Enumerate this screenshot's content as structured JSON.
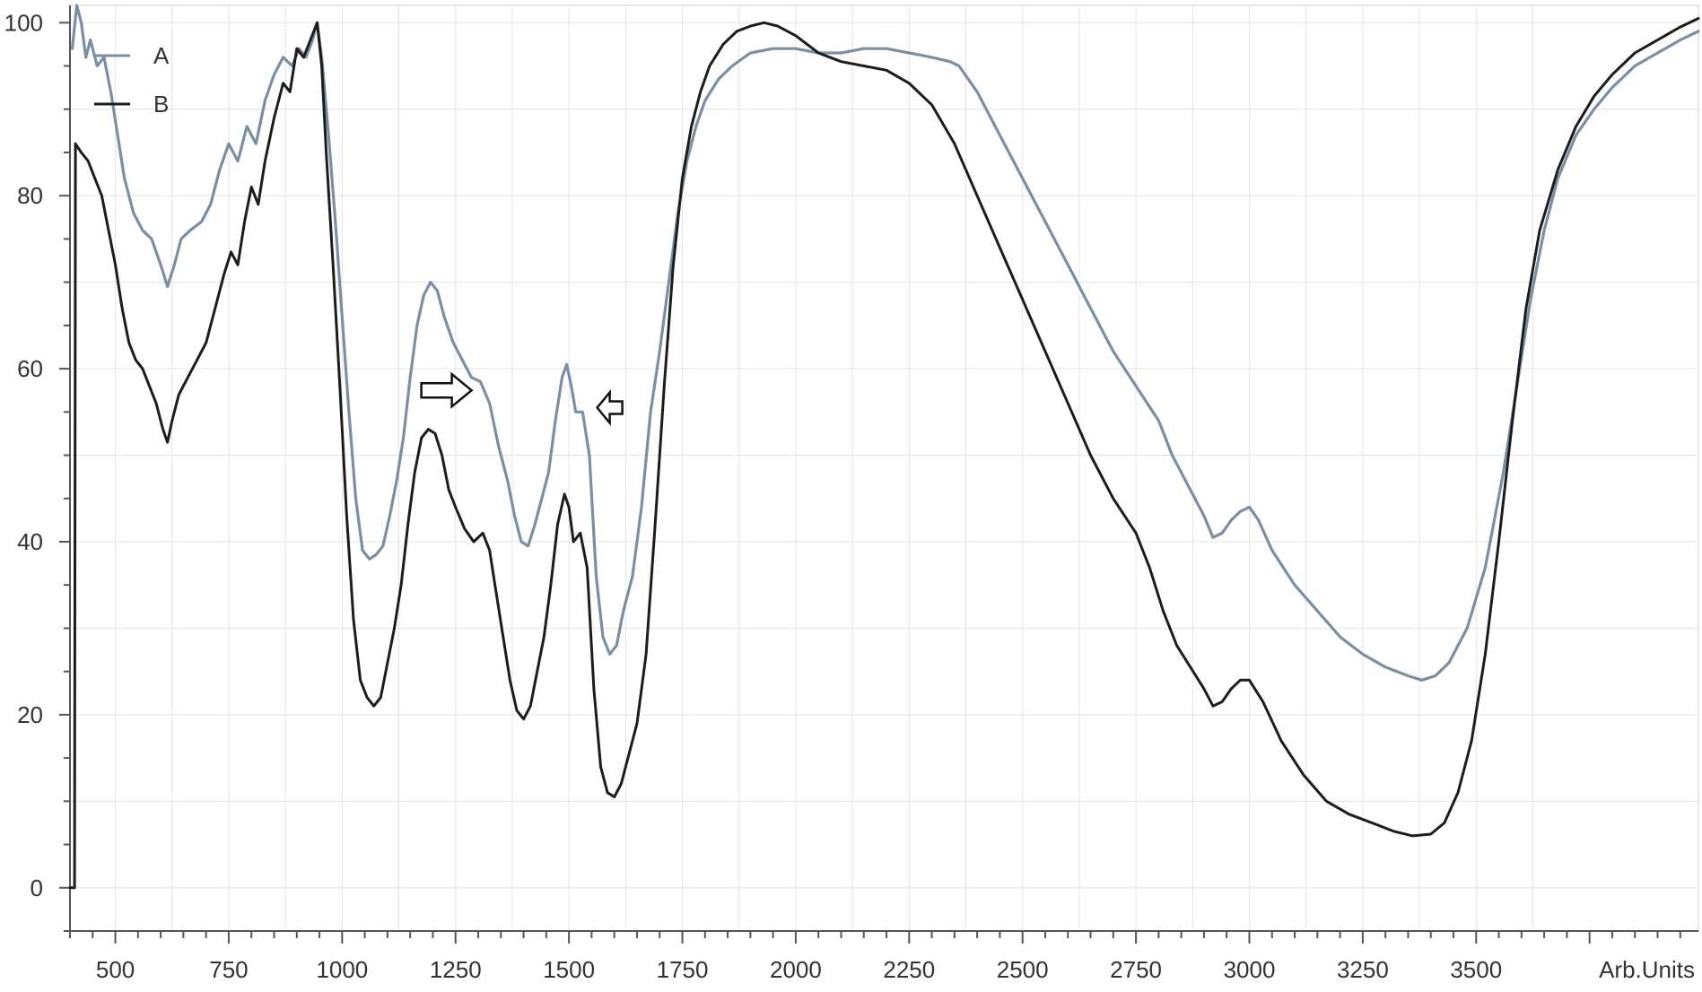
{
  "chart_data": {
    "type": "line",
    "title": "",
    "xlabel": "",
    "ylabel": "",
    "x_unit_label": "Arb.Units",
    "xlim": [
      400,
      3990
    ],
    "ylim": [
      -5,
      102
    ],
    "x_ticks": [
      500,
      750,
      1000,
      1250,
      1500,
      1750,
      2000,
      2250,
      2500,
      2750,
      3000,
      3250,
      3500
    ],
    "x_tick_labels": [
      "500",
      "750",
      "1000",
      "1250",
      "1500",
      "1750",
      "2000",
      "2250",
      "2500",
      "2750",
      "3000",
      "3250",
      "3500"
    ],
    "y_ticks": [
      0,
      20,
      40,
      60,
      80,
      100
    ],
    "y_tick_labels": [
      "0",
      "20",
      "40",
      "60",
      "80",
      "100"
    ],
    "grid": true,
    "legend": {
      "placement": "top-left"
    },
    "annotations": [
      {
        "type": "arrow",
        "direction": "right",
        "x": 1230,
        "y": 57.5
      },
      {
        "type": "arrow",
        "direction": "left",
        "x": 1590,
        "y": 55.5
      }
    ],
    "series": [
      {
        "name": "A",
        "color": "#7b8fa3",
        "points": [
          [
            405,
            97
          ],
          [
            415,
            102
          ],
          [
            425,
            100
          ],
          [
            435,
            96
          ],
          [
            445,
            98
          ],
          [
            460,
            95
          ],
          [
            475,
            96
          ],
          [
            490,
            92
          ],
          [
            505,
            87
          ],
          [
            520,
            82
          ],
          [
            540,
            78
          ],
          [
            560,
            76
          ],
          [
            580,
            75
          ],
          [
            600,
            72
          ],
          [
            615,
            69.5
          ],
          [
            630,
            72
          ],
          [
            645,
            75
          ],
          [
            665,
            76
          ],
          [
            690,
            77
          ],
          [
            710,
            79
          ],
          [
            730,
            83
          ],
          [
            750,
            86
          ],
          [
            770,
            84
          ],
          [
            790,
            88
          ],
          [
            810,
            86
          ],
          [
            830,
            91
          ],
          [
            850,
            94
          ],
          [
            870,
            96
          ],
          [
            890,
            95
          ],
          [
            905,
            97
          ],
          [
            920,
            96
          ],
          [
            935,
            98
          ],
          [
            945,
            100
          ],
          [
            955,
            96
          ],
          [
            970,
            87
          ],
          [
            985,
            77
          ],
          [
            1000,
            66
          ],
          [
            1015,
            55
          ],
          [
            1030,
            45
          ],
          [
            1045,
            39
          ],
          [
            1060,
            38
          ],
          [
            1075,
            38.5
          ],
          [
            1090,
            39.5
          ],
          [
            1105,
            43
          ],
          [
            1120,
            47
          ],
          [
            1135,
            52
          ],
          [
            1150,
            59
          ],
          [
            1165,
            65
          ],
          [
            1180,
            68.5
          ],
          [
            1195,
            70
          ],
          [
            1210,
            69
          ],
          [
            1225,
            66
          ],
          [
            1245,
            63
          ],
          [
            1265,
            61
          ],
          [
            1285,
            59
          ],
          [
            1305,
            58.5
          ],
          [
            1325,
            56
          ],
          [
            1345,
            51
          ],
          [
            1365,
            47
          ],
          [
            1380,
            43
          ],
          [
            1395,
            40
          ],
          [
            1410,
            39.5
          ],
          [
            1425,
            42
          ],
          [
            1440,
            45
          ],
          [
            1455,
            48
          ],
          [
            1470,
            54
          ],
          [
            1485,
            59
          ],
          [
            1495,
            60.5
          ],
          [
            1505,
            58
          ],
          [
            1515,
            55
          ],
          [
            1530,
            55
          ],
          [
            1545,
            50
          ],
          [
            1560,
            36
          ],
          [
            1575,
            29
          ],
          [
            1590,
            27
          ],
          [
            1605,
            28
          ],
          [
            1620,
            32
          ],
          [
            1640,
            36
          ],
          [
            1660,
            44
          ],
          [
            1680,
            55
          ],
          [
            1700,
            62
          ],
          [
            1720,
            70
          ],
          [
            1740,
            78
          ],
          [
            1760,
            84
          ],
          [
            1780,
            88
          ],
          [
            1800,
            91
          ],
          [
            1830,
            93.5
          ],
          [
            1860,
            95
          ],
          [
            1900,
            96.5
          ],
          [
            1950,
            97
          ],
          [
            2000,
            97
          ],
          [
            2050,
            96.5
          ],
          [
            2100,
            96.5
          ],
          [
            2150,
            97
          ],
          [
            2200,
            97
          ],
          [
            2250,
            96.5
          ],
          [
            2300,
            96
          ],
          [
            2340,
            95.5
          ],
          [
            2360,
            95
          ],
          [
            2400,
            92
          ],
          [
            2450,
            87
          ],
          [
            2500,
            82
          ],
          [
            2550,
            77
          ],
          [
            2600,
            72
          ],
          [
            2650,
            67
          ],
          [
            2700,
            62
          ],
          [
            2750,
            58
          ],
          [
            2800,
            54
          ],
          [
            2830,
            50
          ],
          [
            2860,
            47
          ],
          [
            2880,
            45
          ],
          [
            2900,
            43
          ],
          [
            2920,
            40.5
          ],
          [
            2940,
            41
          ],
          [
            2960,
            42.5
          ],
          [
            2980,
            43.5
          ],
          [
            3000,
            44
          ],
          [
            3020,
            42.5
          ],
          [
            3050,
            39
          ],
          [
            3100,
            35
          ],
          [
            3150,
            32
          ],
          [
            3200,
            29
          ],
          [
            3250,
            27
          ],
          [
            3300,
            25.5
          ],
          [
            3350,
            24.5
          ],
          [
            3380,
            24
          ],
          [
            3410,
            24.5
          ],
          [
            3440,
            26
          ],
          [
            3480,
            30
          ],
          [
            3520,
            37
          ],
          [
            3560,
            48
          ],
          [
            3590,
            58
          ],
          [
            3620,
            68
          ],
          [
            3650,
            76
          ],
          [
            3680,
            82
          ],
          [
            3720,
            87
          ],
          [
            3760,
            90
          ],
          [
            3800,
            92.5
          ],
          [
            3850,
            95
          ],
          [
            3900,
            96.5
          ],
          [
            3950,
            98
          ],
          [
            3990,
            99
          ]
        ]
      },
      {
        "name": "B",
        "color": "#1c1c1c",
        "points": [
          [
            400,
            0
          ],
          [
            410,
            0
          ],
          [
            412,
            86
          ],
          [
            425,
            85
          ],
          [
            440,
            84
          ],
          [
            455,
            82
          ],
          [
            470,
            80
          ],
          [
            485,
            76
          ],
          [
            500,
            72
          ],
          [
            515,
            67
          ],
          [
            530,
            63
          ],
          [
            545,
            61
          ],
          [
            560,
            60
          ],
          [
            575,
            58
          ],
          [
            590,
            56
          ],
          [
            605,
            53
          ],
          [
            615,
            51.5
          ],
          [
            625,
            54
          ],
          [
            640,
            57
          ],
          [
            660,
            59
          ],
          [
            680,
            61
          ],
          [
            700,
            63
          ],
          [
            720,
            67
          ],
          [
            740,
            71
          ],
          [
            755,
            73.5
          ],
          [
            770,
            72
          ],
          [
            785,
            77
          ],
          [
            800,
            81
          ],
          [
            815,
            79
          ],
          [
            830,
            84
          ],
          [
            850,
            89
          ],
          [
            870,
            93
          ],
          [
            885,
            92
          ],
          [
            900,
            97
          ],
          [
            915,
            96
          ],
          [
            930,
            98
          ],
          [
            945,
            100
          ],
          [
            955,
            95
          ],
          [
            965,
            85
          ],
          [
            980,
            72
          ],
          [
            995,
            58
          ],
          [
            1010,
            43
          ],
          [
            1025,
            31
          ],
          [
            1040,
            24
          ],
          [
            1055,
            22
          ],
          [
            1070,
            21
          ],
          [
            1085,
            22
          ],
          [
            1100,
            26
          ],
          [
            1115,
            30
          ],
          [
            1130,
            35
          ],
          [
            1145,
            42
          ],
          [
            1160,
            48
          ],
          [
            1175,
            52
          ],
          [
            1190,
            53
          ],
          [
            1205,
            52.5
          ],
          [
            1220,
            50
          ],
          [
            1235,
            46
          ],
          [
            1250,
            44
          ],
          [
            1270,
            41.5
          ],
          [
            1290,
            40
          ],
          [
            1310,
            41
          ],
          [
            1325,
            39
          ],
          [
            1340,
            34
          ],
          [
            1355,
            29
          ],
          [
            1370,
            24
          ],
          [
            1385,
            20.5
          ],
          [
            1400,
            19.5
          ],
          [
            1415,
            21
          ],
          [
            1430,
            25
          ],
          [
            1445,
            29
          ],
          [
            1460,
            35
          ],
          [
            1475,
            42
          ],
          [
            1490,
            45.5
          ],
          [
            1500,
            44
          ],
          [
            1510,
            40
          ],
          [
            1525,
            41
          ],
          [
            1540,
            37
          ],
          [
            1555,
            23
          ],
          [
            1570,
            14
          ],
          [
            1585,
            11
          ],
          [
            1600,
            10.5
          ],
          [
            1615,
            12
          ],
          [
            1630,
            15
          ],
          [
            1650,
            19
          ],
          [
            1670,
            27
          ],
          [
            1690,
            42
          ],
          [
            1710,
            58
          ],
          [
            1730,
            72
          ],
          [
            1750,
            82
          ],
          [
            1770,
            88
          ],
          [
            1790,
            92
          ],
          [
            1810,
            95
          ],
          [
            1840,
            97.5
          ],
          [
            1870,
            99
          ],
          [
            1900,
            99.6
          ],
          [
            1930,
            100
          ],
          [
            1960,
            99.6
          ],
          [
            2000,
            98.5
          ],
          [
            2050,
            96.5
          ],
          [
            2100,
            95.5
          ],
          [
            2150,
            95
          ],
          [
            2200,
            94.5
          ],
          [
            2250,
            93
          ],
          [
            2300,
            90.5
          ],
          [
            2350,
            86
          ],
          [
            2400,
            80
          ],
          [
            2450,
            74
          ],
          [
            2500,
            68
          ],
          [
            2550,
            62
          ],
          [
            2600,
            56
          ],
          [
            2650,
            50
          ],
          [
            2700,
            45
          ],
          [
            2750,
            41
          ],
          [
            2780,
            37
          ],
          [
            2810,
            32
          ],
          [
            2840,
            28
          ],
          [
            2870,
            25.5
          ],
          [
            2900,
            23
          ],
          [
            2920,
            21
          ],
          [
            2940,
            21.5
          ],
          [
            2960,
            23
          ],
          [
            2980,
            24
          ],
          [
            3000,
            24
          ],
          [
            3030,
            21.5
          ],
          [
            3070,
            17
          ],
          [
            3120,
            13
          ],
          [
            3170,
            10
          ],
          [
            3220,
            8.5
          ],
          [
            3270,
            7.5
          ],
          [
            3320,
            6.5
          ],
          [
            3360,
            6
          ],
          [
            3400,
            6.2
          ],
          [
            3430,
            7.5
          ],
          [
            3460,
            11
          ],
          [
            3490,
            17
          ],
          [
            3520,
            27
          ],
          [
            3550,
            40
          ],
          [
            3580,
            54
          ],
          [
            3610,
            67
          ],
          [
            3640,
            76
          ],
          [
            3680,
            83
          ],
          [
            3720,
            88
          ],
          [
            3760,
            91.5
          ],
          [
            3800,
            94
          ],
          [
            3850,
            96.5
          ],
          [
            3900,
            98
          ],
          [
            3950,
            99.5
          ],
          [
            3990,
            100.5
          ]
        ]
      }
    ]
  }
}
